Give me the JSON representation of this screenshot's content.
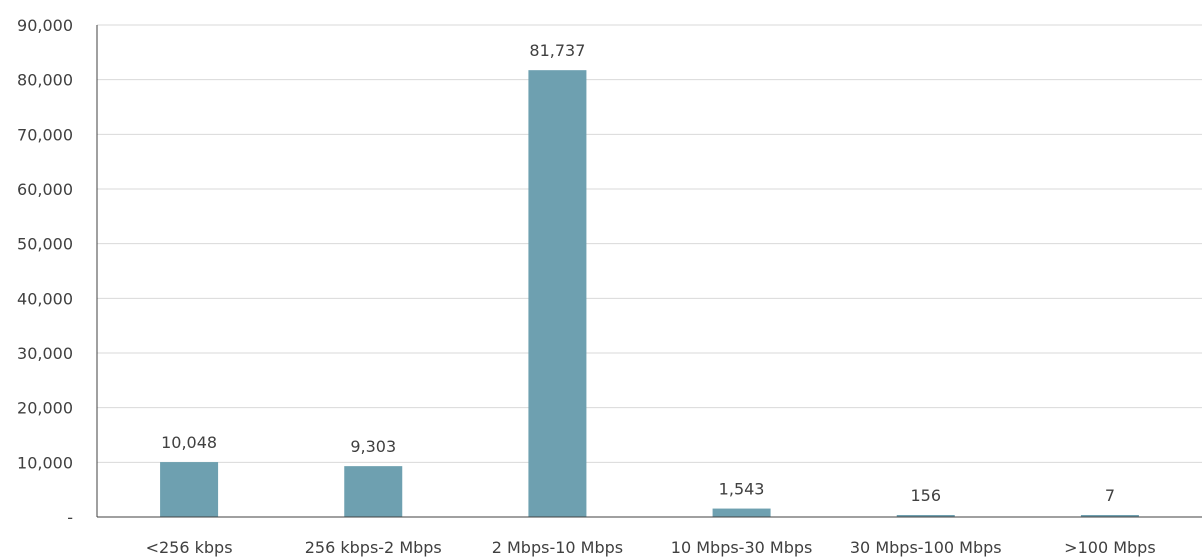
{
  "chart_data": {
    "type": "bar",
    "categories": [
      "<256 kbps",
      "256 kbps-2 Mbps",
      "2 Mbps-10 Mbps",
      "10 Mbps-30 Mbps",
      "30 Mbps-100 Mbps",
      ">100 Mbps"
    ],
    "values": [
      10048,
      9303,
      81737,
      1543,
      156,
      7
    ],
    "value_labels": [
      "10,048",
      "9,303",
      "81,737",
      "1,543",
      "156",
      "7"
    ],
    "y_ticks": [
      0,
      10000,
      20000,
      30000,
      40000,
      50000,
      60000,
      70000,
      80000,
      90000
    ],
    "y_tick_labels": [
      "-",
      "10,000",
      "20,000",
      "30,000",
      "40,000",
      "50,000",
      "60,000",
      "70,000",
      "80,000",
      "90,000"
    ],
    "ylim": [
      0,
      90000
    ],
    "grid": true,
    "bar_color": "#6ea0b0",
    "title": "",
    "xlabel": "",
    "ylabel": ""
  }
}
